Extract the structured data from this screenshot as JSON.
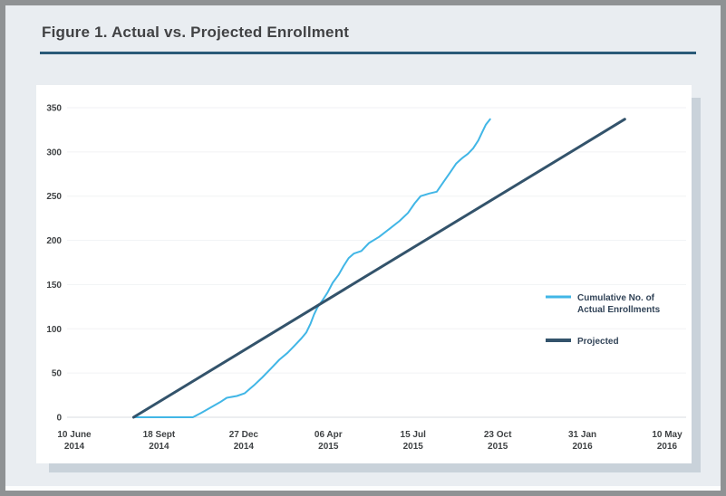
{
  "title": "Figure 1. Actual vs. Projected Enrollment",
  "colors": {
    "actual_line": "#41b6e6",
    "projected_line": "#33536b",
    "title_rule": "#2a5a78",
    "page_background": "#e9edf1",
    "panel_background": "#ffffff",
    "grid_line": "#f1f2f4",
    "axis_line": "#d9dde1"
  },
  "chart_data": {
    "type": "line",
    "title": "Figure 1. Actual vs. Projected Enrollment",
    "xlabel": "",
    "ylabel": "",
    "grid": true,
    "legend_position": "inside-right",
    "x_axis": {
      "unit": "days since 10 June 2014",
      "range": [
        0,
        700
      ],
      "ticks": [
        {
          "day": 0,
          "lines": [
            "10 June",
            "2014"
          ]
        },
        {
          "day": 100,
          "lines": [
            "18 Sept",
            "2014"
          ]
        },
        {
          "day": 200,
          "lines": [
            "27 Dec",
            "2014"
          ]
        },
        {
          "day": 300,
          "lines": [
            "06 Apr",
            "2015"
          ]
        },
        {
          "day": 400,
          "lines": [
            "15 Jul",
            "2015"
          ]
        },
        {
          "day": 500,
          "lines": [
            "23 Oct",
            "2015"
          ]
        },
        {
          "day": 600,
          "lines": [
            "31 Jan",
            "2016"
          ]
        },
        {
          "day": 700,
          "lines": [
            "10 May",
            "2016"
          ]
        }
      ]
    },
    "y_axis": {
      "range": [
        0,
        350
      ],
      "ticks": [
        0,
        50,
        100,
        150,
        200,
        250,
        300,
        350
      ]
    },
    "series": [
      {
        "id": "actual",
        "name": "Cumulative No. of Actual Enrollments",
        "color": "#41b6e6",
        "stroke_width": 2,
        "points": [
          [
            70,
            0
          ],
          [
            140,
            0
          ],
          [
            150,
            5
          ],
          [
            161,
            11
          ],
          [
            172,
            17
          ],
          [
            180,
            22
          ],
          [
            192,
            24
          ],
          [
            201,
            27
          ],
          [
            212,
            36
          ],
          [
            222,
            45
          ],
          [
            232,
            55
          ],
          [
            242,
            65
          ],
          [
            252,
            73
          ],
          [
            260,
            81
          ],
          [
            268,
            89
          ],
          [
            274,
            96
          ],
          [
            279,
            106
          ],
          [
            283,
            116
          ],
          [
            287,
            124
          ],
          [
            293,
            132
          ],
          [
            299,
            141
          ],
          [
            305,
            152
          ],
          [
            312,
            161
          ],
          [
            318,
            171
          ],
          [
            324,
            180
          ],
          [
            330,
            185
          ],
          [
            339,
            188
          ],
          [
            348,
            197
          ],
          [
            360,
            204
          ],
          [
            372,
            213
          ],
          [
            384,
            222
          ],
          [
            394,
            231
          ],
          [
            402,
            242
          ],
          [
            409,
            250
          ],
          [
            419,
            253
          ],
          [
            428,
            255
          ],
          [
            436,
            266
          ],
          [
            444,
            277
          ],
          [
            451,
            287
          ],
          [
            458,
            293
          ],
          [
            465,
            298
          ],
          [
            471,
            304
          ],
          [
            477,
            313
          ],
          [
            482,
            323
          ],
          [
            486,
            331
          ],
          [
            491,
            337
          ]
        ]
      },
      {
        "id": "projected",
        "name": "Projected",
        "color": "#33536b",
        "stroke_width": 3,
        "points": [
          [
            70,
            0
          ],
          [
            650,
            337
          ]
        ]
      }
    ],
    "legend": [
      {
        "series": 0,
        "lines": [
          "Cumulative No. of",
          "Actual Enrollments"
        ]
      },
      {
        "series": 1,
        "lines": [
          "Projected"
        ]
      }
    ]
  }
}
